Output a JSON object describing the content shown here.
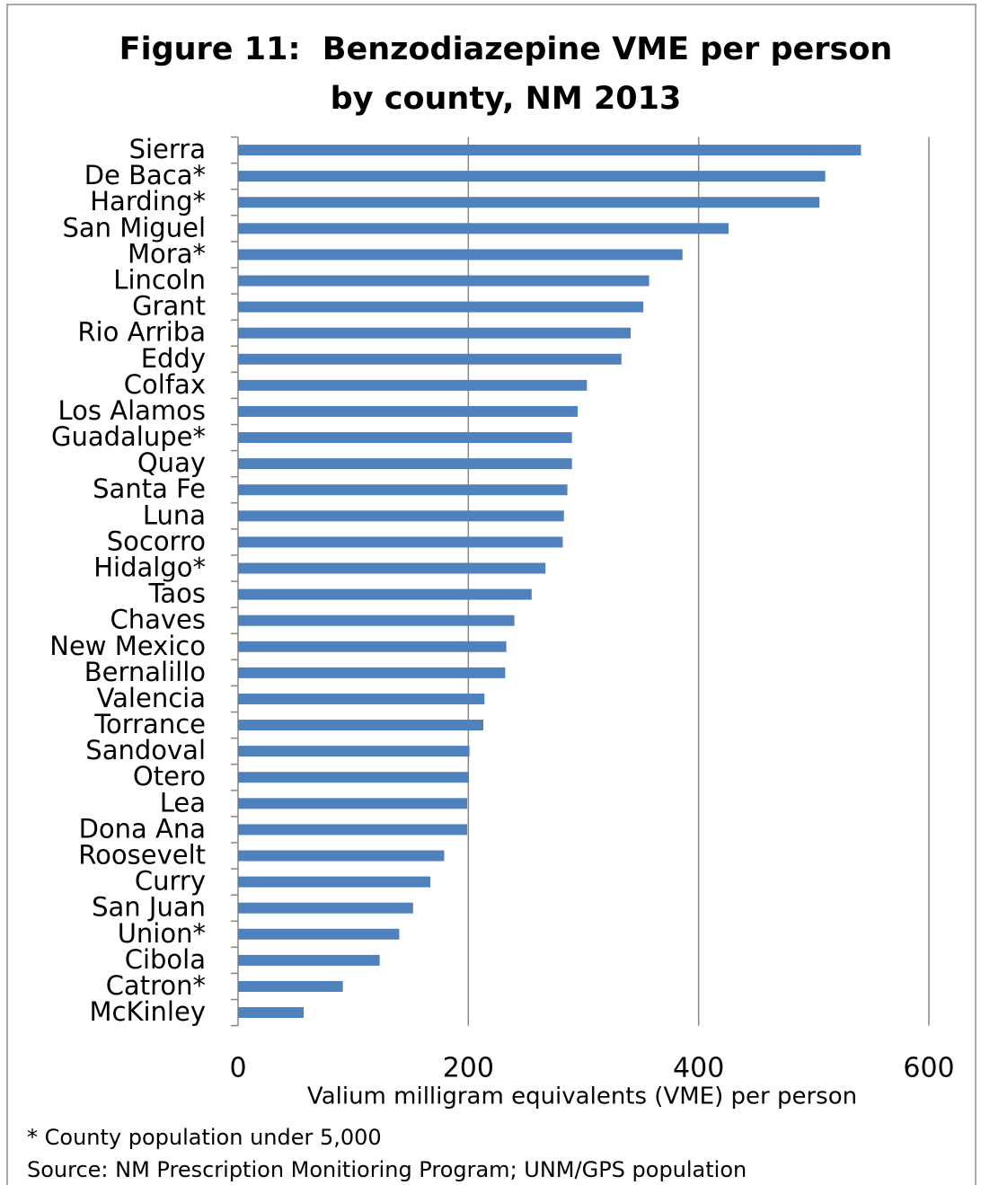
{
  "chart_data": {
    "type": "barh",
    "title": "Figure 11:  Benzodiazepine VME per person by county, NM 2013",
    "x_label": "Valium milligram equivalents (VME) per person",
    "notes": [
      "* County population under 5,000",
      "Source:  NM Prescription Monitioring Program; UNM/GPS population"
    ],
    "categories": [
      "Sierra",
      "De Baca*",
      "Harding*",
      "San Miguel",
      "Mora*",
      "Lincoln",
      "Grant",
      "Rio Arriba",
      "Eddy",
      "Colfax",
      "Los Alamos",
      "Guadalupe*",
      "Quay",
      "Santa Fe",
      "Luna",
      "Socorro",
      "Hidalgo*",
      "Taos",
      "Chaves",
      "New Mexico",
      "Bernalillo",
      "Valencia",
      "Torrance",
      "Sandoval",
      "Otero",
      "Lea",
      "Dona Ana",
      "Roosevelt",
      "Curry",
      "San Juan",
      "Union*",
      "Cibola",
      "Catron*",
      "McKinley"
    ],
    "values": [
      541,
      510,
      505,
      426,
      386,
      357,
      352,
      341,
      333,
      303,
      295,
      290,
      290,
      286,
      283,
      282,
      267,
      255,
      240,
      233,
      232,
      214,
      213,
      201,
      200,
      199,
      199,
      179,
      167,
      152,
      140,
      123,
      91,
      57
    ],
    "color": "#4f81bd",
    "xlim": [
      0,
      600
    ],
    "xticks": [
      0,
      200,
      400,
      600
    ],
    "grid": true
  }
}
